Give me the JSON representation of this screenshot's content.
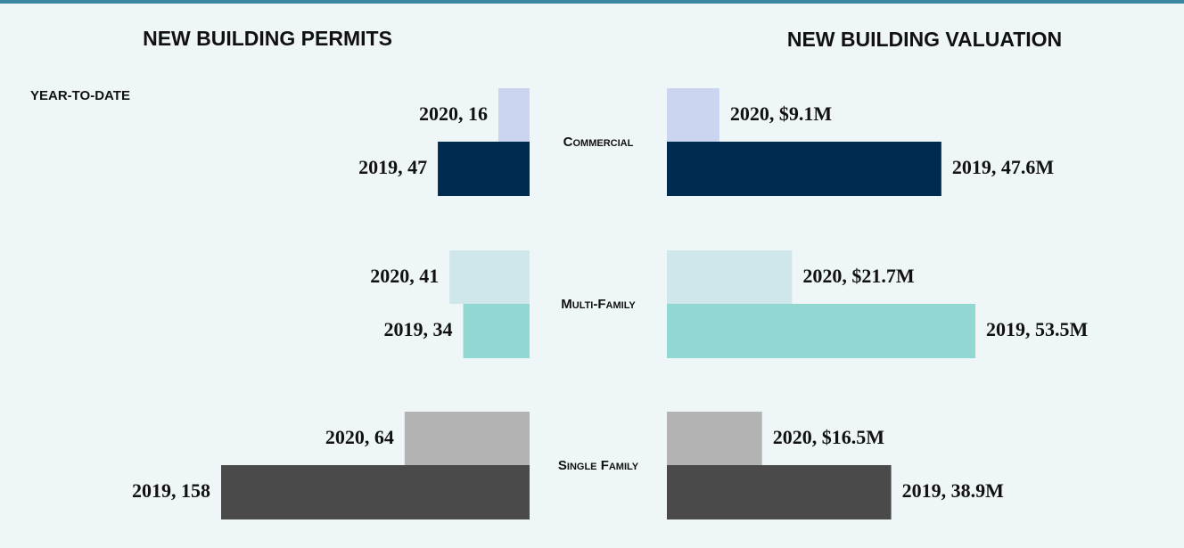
{
  "label": "YEAR-TO-DATE",
  "chart_data": [
    {
      "type": "bar",
      "title": "NEW BUILDING PERMITS",
      "categories": [
        "Commercial",
        "Multi-Family",
        "Single Family"
      ],
      "series": [
        {
          "colors": [
            "#ccd5ef",
            "#cfe6ea",
            "#b3b3b3"
          ],
          "values": [
            16,
            41,
            64
          ],
          "value_labels": [
            "2020, 16",
            "2020, 41",
            "2020, 64"
          ]
        },
        {
          "colors": [
            "#002b50",
            "#92d8d2",
            "#4a4a4a"
          ],
          "values": [
            47,
            34,
            158
          ],
          "value_labels": [
            "2019, 47",
            "2019, 34",
            "2019, 158"
          ]
        }
      ]
    },
    {
      "type": "bar",
      "title": "NEW BUILDING VALUATION",
      "series": [
        {
          "colors": [
            "#ccd5ef",
            "#cfe6ea",
            "#b3b3b3"
          ],
          "values": [
            9.1,
            21.7,
            16.5
          ],
          "value_labels": [
            "2020, $9.1M",
            "2020, $21.7M",
            "2020, $16.5M"
          ]
        },
        {
          "colors": [
            "#002b50",
            "#92d8d2",
            "#4a4a4a"
          ],
          "values": [
            47.6,
            53.5,
            38.9
          ],
          "value_labels": [
            "2019, 47.6M",
            "2019, 53.5M",
            "2019, 38.9M"
          ]
        }
      ]
    }
  ]
}
